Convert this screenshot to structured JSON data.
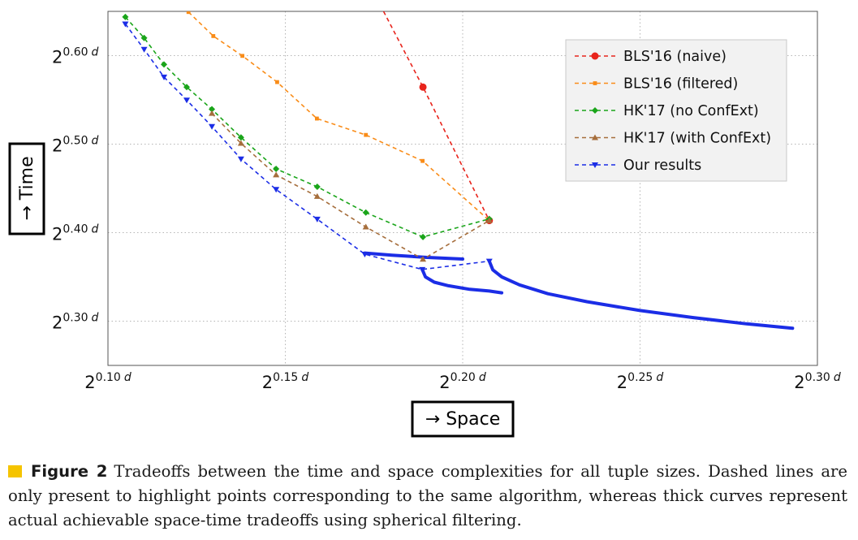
{
  "chart_data": {
    "type": "line",
    "xlabel": "→ Space",
    "ylabel": "→ Time",
    "xlim": [
      0.1,
      0.3
    ],
    "ylim": [
      0.25,
      0.65
    ],
    "x_ticks": [
      {
        "value": 0.1,
        "base": "2",
        "exp": "0.10",
        "unit": "d"
      },
      {
        "value": 0.15,
        "base": "2",
        "exp": "0.15",
        "unit": "d"
      },
      {
        "value": 0.2,
        "base": "2",
        "exp": "0.20",
        "unit": "d"
      },
      {
        "value": 0.25,
        "base": "2",
        "exp": "0.25",
        "unit": "d"
      },
      {
        "value": 0.3,
        "base": "2",
        "exp": "0.30",
        "unit": "d"
      }
    ],
    "y_ticks": [
      {
        "value": 0.3,
        "base": "2",
        "exp": "0.30",
        "unit": "d"
      },
      {
        "value": 0.4,
        "base": "2",
        "exp": "0.40",
        "unit": "d"
      },
      {
        "value": 0.5,
        "base": "2",
        "exp": "0.50",
        "unit": "d"
      },
      {
        "value": 0.6,
        "base": "2",
        "exp": "0.60",
        "unit": "d"
      }
    ],
    "grid": true,
    "legend_position": "top-right",
    "series": [
      {
        "name": "BLS'16 (naive)",
        "color": "#e8241c",
        "marker": "circle",
        "dashed": true,
        "points": [
          [
            0.1777,
            0.65
          ],
          [
            0.1888,
            0.5644
          ],
          [
            0.2075,
            0.4137
          ]
        ]
      },
      {
        "name": "BLS'16 (filtered)",
        "color": "#f98c18",
        "marker": "square",
        "dashed": true,
        "points": [
          [
            0.1227,
            0.6493
          ],
          [
            0.1297,
            0.6221
          ],
          [
            0.1379,
            0.5997
          ],
          [
            0.1477,
            0.5701
          ],
          [
            0.1589,
            0.5289
          ],
          [
            0.1727,
            0.5104
          ],
          [
            0.1887,
            0.481
          ],
          [
            0.2075,
            0.4137
          ]
        ]
      },
      {
        "name": "HK'17 (no ConfExt)",
        "color": "#1aa51a",
        "marker": "diamond",
        "dashed": true,
        "points": [
          [
            0.1049,
            0.6437
          ],
          [
            0.1102,
            0.6199
          ],
          [
            0.1158,
            0.59
          ],
          [
            0.1222,
            0.5645
          ],
          [
            0.1293,
            0.5394
          ],
          [
            0.1375,
            0.5076
          ],
          [
            0.1474,
            0.472
          ],
          [
            0.159,
            0.4518
          ],
          [
            0.1727,
            0.4227
          ],
          [
            0.1888,
            0.3951
          ],
          [
            0.2075,
            0.4155
          ]
        ]
      },
      {
        "name": "HK'17 (with ConfExt)",
        "color": "#a66e3c",
        "marker": "triangle-up",
        "dashed": true,
        "points": [
          [
            0.1293,
            0.5348
          ],
          [
            0.1375,
            0.5009
          ],
          [
            0.1474,
            0.4653
          ],
          [
            0.159,
            0.4409
          ],
          [
            0.1727,
            0.4064
          ],
          [
            0.1888,
            0.37
          ],
          [
            0.2075,
            0.4137
          ]
        ]
      },
      {
        "name": "Our results",
        "color": "#1b2de6",
        "marker": "triangle-down",
        "dashed": true,
        "points": [
          [
            0.1049,
            0.6358
          ],
          [
            0.1102,
            0.6071
          ],
          [
            0.1158,
            0.5758
          ],
          [
            0.1222,
            0.5498
          ],
          [
            0.1293,
            0.5199
          ],
          [
            0.1375,
            0.4832
          ],
          [
            0.1474,
            0.4488
          ],
          [
            0.159,
            0.4152
          ],
          [
            0.1724,
            0.3757
          ],
          [
            0.1886,
            0.3584
          ],
          [
            0.2075,
            0.3678
          ]
        ]
      }
    ],
    "curves": [
      {
        "color": "#1b2de6",
        "points": [
          [
            0.1724,
            0.377
          ],
          [
            0.18,
            0.3745
          ],
          [
            0.19,
            0.372
          ],
          [
            0.2,
            0.3702
          ]
        ]
      },
      {
        "color": "#1b2de6",
        "points": [
          [
            0.1886,
            0.3584
          ],
          [
            0.1895,
            0.35
          ],
          [
            0.192,
            0.344
          ],
          [
            0.196,
            0.34
          ],
          [
            0.202,
            0.336
          ],
          [
            0.2075,
            0.334
          ],
          [
            0.211,
            0.332
          ]
        ]
      },
      {
        "color": "#1b2de6",
        "points": [
          [
            0.2075,
            0.3678
          ],
          [
            0.2085,
            0.358
          ],
          [
            0.211,
            0.35
          ],
          [
            0.216,
            0.341
          ],
          [
            0.224,
            0.331
          ],
          [
            0.235,
            0.322
          ],
          [
            0.25,
            0.312
          ],
          [
            0.265,
            0.304
          ],
          [
            0.28,
            0.297
          ],
          [
            0.293,
            0.292
          ]
        ]
      }
    ]
  },
  "caption": {
    "label": "Figure 2",
    "text": "Tradeoffs between the time and space complexities for all tuple sizes. Dashed lines are only present to highlight points corresponding to the same algorithm, whereas thick curves represent actual achievable space-time tradeoffs using spherical filtering.",
    "marker_color": "#f5c400"
  }
}
